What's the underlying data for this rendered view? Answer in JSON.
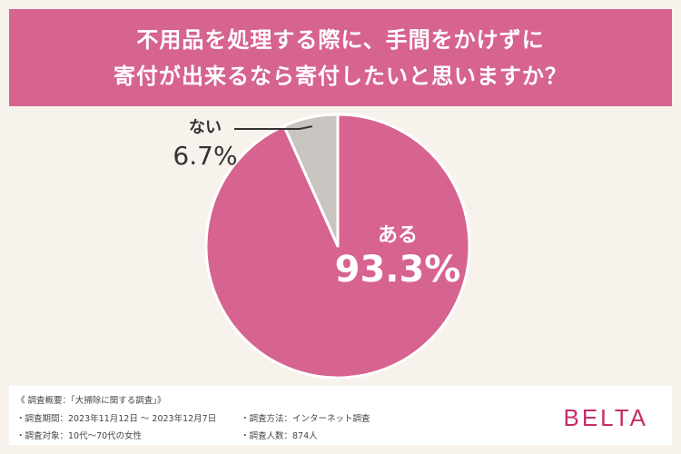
{
  "header": {
    "title_line1": "不用品を処理する際に、手間をかけずに",
    "title_line2": "寄付が出来るなら寄付したいと思いますか？"
  },
  "colors": {
    "banner": "#d76390",
    "slice_yes": "#d76390",
    "slice_no": "#c8c4bf",
    "background": "#f7f3ec",
    "logo": "#c42e6a"
  },
  "chart_data": {
    "type": "pie",
    "title": "不用品を処理する際に、手間をかけずに寄付が出来るなら寄付したいと思いますか？",
    "slices": [
      {
        "label": "ある",
        "value": 93.3,
        "display": "93.3%"
      },
      {
        "label": "ない",
        "value": 6.7,
        "display": "6.7%"
      }
    ]
  },
  "footer": {
    "overview": "《 調査概要：「大掃除に関する調査」》",
    "period": "・調査期間：2023年11月12日 ～ 2023年12月7日",
    "target": "・調査対象：10代～70代の女性",
    "method": "・調査方法：インターネット調査",
    "count": "・調査人数：874人",
    "logo": "BELTA"
  }
}
